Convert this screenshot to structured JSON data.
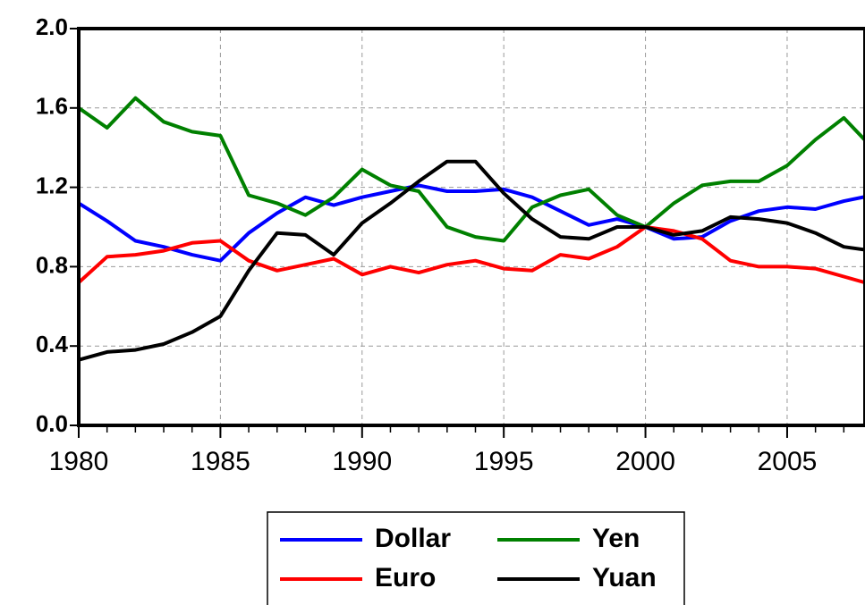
{
  "chart_data": {
    "type": "line",
    "x": [
      1980,
      1981,
      1982,
      1983,
      1984,
      1985,
      1986,
      1987,
      1988,
      1989,
      1990,
      1991,
      1992,
      1993,
      1994,
      1995,
      1996,
      1997,
      1998,
      1999,
      2000,
      2001,
      2002,
      2003,
      2004,
      2005,
      2006,
      2007,
      2008
    ],
    "series": [
      {
        "name": "Dollar",
        "color": "#0000ff",
        "values": [
          1.12,
          1.03,
          0.93,
          0.9,
          0.86,
          0.83,
          0.97,
          1.07,
          1.15,
          1.11,
          1.15,
          1.18,
          1.21,
          1.18,
          1.18,
          1.19,
          1.15,
          1.08,
          1.01,
          1.04,
          1.0,
          0.94,
          0.95,
          1.03,
          1.08,
          1.1,
          1.09,
          1.13,
          1.16
        ]
      },
      {
        "name": "Yen",
        "color": "#008000",
        "values": [
          1.6,
          1.5,
          1.65,
          1.53,
          1.48,
          1.46,
          1.16,
          1.12,
          1.06,
          1.15,
          1.29,
          1.21,
          1.18,
          1.0,
          0.95,
          0.93,
          1.1,
          1.16,
          1.19,
          1.06,
          1.0,
          1.12,
          1.21,
          1.23,
          1.23,
          1.31,
          1.44,
          1.55,
          1.4
        ]
      },
      {
        "name": "Euro",
        "color": "#ff0000",
        "values": [
          0.72,
          0.85,
          0.86,
          0.88,
          0.92,
          0.93,
          0.83,
          0.78,
          0.81,
          0.84,
          0.76,
          0.8,
          0.77,
          0.81,
          0.83,
          0.79,
          0.78,
          0.86,
          0.84,
          0.9,
          1.0,
          0.98,
          0.94,
          0.83,
          0.8,
          0.8,
          0.79,
          0.75,
          0.71
        ]
      },
      {
        "name": "Yuan",
        "color": "#000000",
        "values": [
          0.33,
          0.37,
          0.38,
          0.41,
          0.47,
          0.55,
          0.78,
          0.97,
          0.96,
          0.86,
          1.02,
          1.12,
          1.23,
          1.33,
          1.33,
          1.17,
          1.04,
          0.95,
          0.94,
          1.0,
          1.0,
          0.96,
          0.98,
          1.05,
          1.04,
          1.02,
          0.97,
          0.9,
          0.88
        ]
      }
    ],
    "xlim": [
      1980,
      2008
    ],
    "xticks": [
      1980,
      1985,
      1990,
      1995,
      2000,
      2005
    ],
    "ylim": [
      0,
      2
    ],
    "yticks": [
      {
        "value": 0,
        "label": "0.0"
      },
      0.4,
      0.8,
      1.2,
      1.6,
      {
        "value": 2,
        "label": "2.0"
      }
    ],
    "grid": true
  }
}
